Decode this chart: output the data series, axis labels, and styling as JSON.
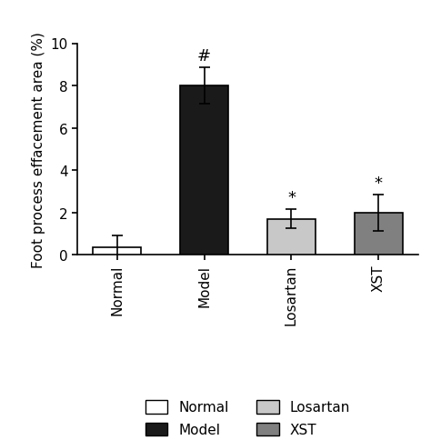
{
  "categories": [
    "Normal",
    "Model",
    "Losartan",
    "XST"
  ],
  "values": [
    0.35,
    8.0,
    1.7,
    2.0
  ],
  "errors": [
    0.55,
    0.85,
    0.45,
    0.85
  ],
  "bar_colors": [
    "#ffffff",
    "#1a1a1a",
    "#c8c8c8",
    "#808080"
  ],
  "bar_edgecolors": [
    "#000000",
    "#000000",
    "#000000",
    "#000000"
  ],
  "ylabel": "Foot process effacement area (%)",
  "ylim": [
    0,
    10
  ],
  "yticks": [
    0,
    2,
    4,
    6,
    8,
    10
  ],
  "annotations": [
    "",
    "#",
    "*",
    "*"
  ],
  "legend_labels": [
    "Normal",
    "Model",
    "Losartan",
    "XST"
  ],
  "legend_colors": [
    "#ffffff",
    "#1a1a1a",
    "#c8c8c8",
    "#808080"
  ],
  "background_color": "#ffffff",
  "bar_width": 0.55,
  "capsize": 4,
  "annotation_fontsize": 13,
  "tick_fontsize": 11,
  "label_fontsize": 11
}
